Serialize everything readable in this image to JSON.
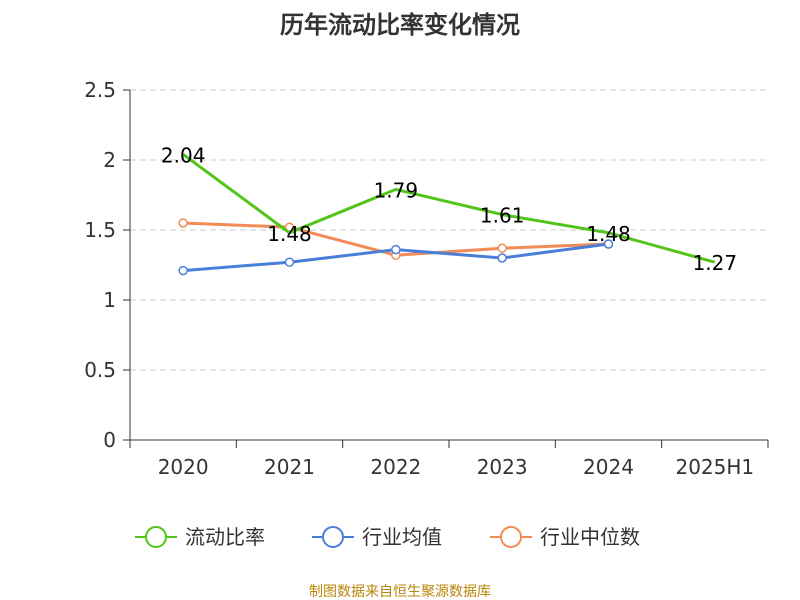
{
  "chart_data": {
    "type": "line",
    "title": "历年流动比率变化情况",
    "categories": [
      "2020",
      "2021",
      "2022",
      "2023",
      "2024",
      "2025H1"
    ],
    "ylim": [
      0,
      2.5
    ],
    "yticks": [
      "0",
      "0.5",
      "1",
      "1.5",
      "2",
      "2.5"
    ],
    "ytick_values": [
      0,
      0.5,
      1,
      1.5,
      2,
      2.5
    ],
    "grid": true,
    "legend_position": "bottom",
    "series": [
      {
        "name": "流动比率",
        "color": "#52c41a",
        "values": [
          2.04,
          1.48,
          1.79,
          1.61,
          1.48,
          1.27
        ],
        "labels": [
          "2.04",
          "1.48",
          "1.79",
          "1.61",
          "1.48",
          "1.27"
        ]
      },
      {
        "name": "行业均值",
        "color": "#4a7fd9",
        "values": [
          1.21,
          1.27,
          1.36,
          1.3,
          1.4,
          null
        ]
      },
      {
        "name": "行业中位数",
        "color": "#f28b55",
        "values": [
          1.55,
          1.52,
          1.32,
          1.37,
          1.4,
          null
        ]
      }
    ]
  },
  "source": "制图数据来自恒生聚源数据库"
}
